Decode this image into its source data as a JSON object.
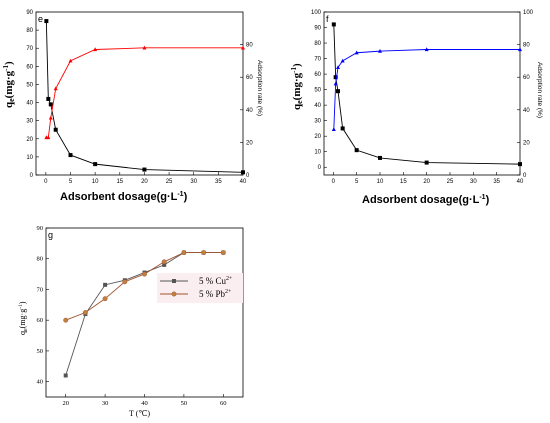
{
  "panels": {
    "e": {
      "letter": "e",
      "ylabel_main": "q",
      "ylabel_sub": "e",
      "ylabel_rest": "(mg·g",
      "ylabel_sup": "-1",
      "ylabel_close": ")",
      "xlabel": "Adsorbent dosage(g·L",
      "xlabel_sup": "-1",
      "xlabel_close": ")",
      "y2label": "Adsorption rate (%)"
    },
    "f": {
      "letter": "f",
      "ylabel_main": "q",
      "ylabel_sub": "e",
      "ylabel_rest": "(mg·g",
      "ylabel_sup": "-1",
      "ylabel_close": ")",
      "xlabel": "Adsorbent dosage(g·L",
      "xlabel_sup": "-1",
      "xlabel_close": ")",
      "y2label": "Adsorption rate (%)"
    },
    "g": {
      "letter": "g",
      "ylabel_main": "q",
      "ylabel_sub": "e",
      "ylabel_rest": "(mg·g",
      "ylabel_sup": "-1",
      "ylabel_close": ")",
      "xlabel": "T (℃)"
    }
  },
  "colors": {
    "e_qe": "#000000",
    "e_rate": "#ff0000",
    "f_qe": "#000000",
    "f_rate": "#0000ff",
    "g_cu": "#555555",
    "g_pb": "#a0522d",
    "g_pb_marker": "#c08040"
  },
  "chart_data": [
    {
      "id": "e",
      "type": "line",
      "xlim": [
        -2,
        40
      ],
      "xticks": [
        0,
        5,
        10,
        15,
        20,
        25,
        30,
        35,
        40
      ],
      "ylim": [
        0,
        90
      ],
      "yticks": [
        0,
        10,
        20,
        30,
        40,
        50,
        60,
        70,
        80,
        90
      ],
      "y2lim": [
        0,
        100
      ],
      "y2ticks": [
        0,
        20,
        40,
        60,
        80
      ],
      "series": [
        {
          "axis": "left",
          "marker": "square",
          "color_key": "e_qe",
          "x": [
            0.1,
            0.5,
            1,
            2,
            5,
            10,
            20,
            40
          ],
          "y": [
            85,
            42,
            39,
            25,
            11,
            6,
            3,
            1.5
          ]
        },
        {
          "axis": "right",
          "marker": "triangle",
          "color_key": "e_rate",
          "x": [
            0.1,
            0.5,
            1,
            2,
            5,
            10,
            20,
            40
          ],
          "y": [
            23,
            23,
            35,
            53,
            70,
            77,
            78,
            78
          ]
        }
      ]
    },
    {
      "id": "f",
      "type": "line",
      "xlim": [
        -2,
        40
      ],
      "xticks": [
        0,
        5,
        10,
        15,
        20,
        25,
        30,
        35,
        40
      ],
      "ylim": [
        -5,
        100
      ],
      "yticks": [
        0,
        10,
        20,
        30,
        40,
        50,
        60,
        70,
        80,
        90,
        100
      ],
      "y2lim": [
        0,
        100
      ],
      "y2ticks": [
        0,
        20,
        40,
        60,
        80,
        100
      ],
      "series": [
        {
          "axis": "left",
          "marker": "square",
          "color_key": "f_qe",
          "x": [
            0.1,
            0.5,
            1,
            2,
            5,
            10,
            20,
            40
          ],
          "y": [
            92,
            58,
            49,
            25,
            11,
            6,
            3,
            2
          ]
        },
        {
          "axis": "right",
          "marker": "triangle",
          "color_key": "f_rate",
          "x": [
            0.1,
            0.5,
            1,
            2,
            5,
            10,
            20,
            40
          ],
          "y": [
            28,
            56,
            66,
            70,
            75,
            76,
            77,
            77
          ]
        }
      ]
    },
    {
      "id": "g",
      "type": "line",
      "xlim": [
        15,
        65
      ],
      "xticks": [
        20,
        30,
        40,
        50,
        60
      ],
      "ylim": [
        35,
        90
      ],
      "yticks": [
        40,
        50,
        60,
        70,
        80,
        90
      ],
      "series": [
        {
          "name": "5 % Cu",
          "name_sup": "2+",
          "marker": "square",
          "color_key": "g_cu",
          "x": [
            20,
            25,
            30,
            35,
            40,
            45,
            50,
            55,
            60
          ],
          "y": [
            42,
            62,
            71.5,
            73,
            75.5,
            78,
            82,
            82,
            82
          ]
        },
        {
          "name": "5 % Pb",
          "name_sup": "2+",
          "marker": "circle",
          "color_key": "g_pb",
          "x": [
            20,
            25,
            30,
            35,
            40,
            45,
            50,
            55,
            60
          ],
          "y": [
            60,
            62.5,
            67,
            72.5,
            75,
            79,
            82,
            82,
            82
          ]
        }
      ]
    }
  ]
}
